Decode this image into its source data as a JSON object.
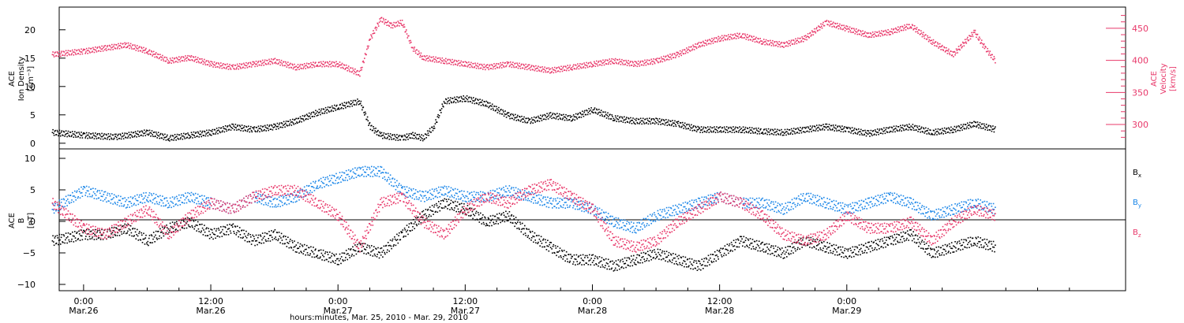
{
  "colors": {
    "black": "#000000",
    "pink": "#e8386a",
    "blue": "#1a86e8",
    "pink_axis": "#e8386a"
  },
  "chart_data": [
    {
      "type": "scatter",
      "panel": "top",
      "ylabel_left": [
        "ACE",
        "Ion Density",
        "[cm⁻³]"
      ],
      "ylabel_right": [
        "ACE",
        "Velocity",
        "[km/s]"
      ],
      "ylim_left": [
        -1,
        24
      ],
      "yticks_left": [
        "0",
        "5",
        "10",
        "15",
        "20"
      ],
      "ylim_right": [
        262,
        483
      ],
      "yticks_right": [
        "300",
        "350",
        "400",
        "450"
      ],
      "series": [
        {
          "color": "black",
          "axis": "left",
          "x": [
            -3,
            0,
            3,
            6,
            8,
            10,
            12,
            14,
            16,
            18,
            20,
            22,
            24,
            26,
            27,
            28,
            30,
            31,
            32,
            33,
            34,
            36,
            38,
            40,
            42,
            44,
            46,
            48,
            50,
            52,
            54,
            56,
            58,
            60,
            62,
            64,
            66,
            68,
            70,
            72,
            74,
            76,
            78,
            80,
            82,
            84,
            86
          ],
          "y": [
            2,
            1.5,
            1.2,
            2,
            1,
            1.5,
            2,
            3,
            2.5,
            3,
            4,
            5.5,
            6.5,
            7.5,
            3,
            1.5,
            1,
            1.5,
            1,
            3,
            7.5,
            8,
            7,
            5,
            4,
            5,
            4.5,
            6,
            4.5,
            4,
            4,
            3.5,
            2.5,
            2.5,
            2.5,
            2.2,
            2,
            2.5,
            3,
            2.5,
            1.8,
            2.5,
            3,
            2,
            2.5,
            3.5,
            2.5
          ]
        },
        {
          "color": "pink",
          "axis": "right",
          "x": [
            -3,
            0,
            2,
            4,
            6,
            8,
            10,
            12,
            14,
            16,
            18,
            20,
            22,
            24,
            26,
            27,
            28,
            29,
            30,
            31,
            32,
            34,
            36,
            38,
            40,
            42,
            44,
            46,
            48,
            50,
            52,
            54,
            56,
            58,
            60,
            62,
            64,
            66,
            68,
            70,
            72,
            74,
            76,
            78,
            80,
            82,
            84,
            85,
            86
          ],
          "y": [
            410,
            415,
            420,
            425,
            415,
            400,
            405,
            395,
            390,
            395,
            400,
            390,
            395,
            395,
            380,
            435,
            465,
            455,
            460,
            420,
            405,
            400,
            395,
            390,
            395,
            390,
            385,
            390,
            395,
            400,
            395,
            400,
            410,
            425,
            435,
            440,
            430,
            425,
            435,
            460,
            450,
            440,
            445,
            455,
            430,
            410,
            445,
            420,
            400
          ]
        }
      ]
    },
    {
      "type": "scatter",
      "panel": "bottom",
      "ylabel_left": [
        "ACE",
        "B",
        "[nT]"
      ],
      "ylim_left": [
        -11,
        11.5
      ],
      "yticks_left": [
        "10",
        "5",
        "0",
        "−5",
        "−10"
      ],
      "xlim": [
        -2.3,
        98.3
      ],
      "xticks": [
        {
          "x": 0,
          "label_time": "0:00",
          "label_day": "Mar.26"
        },
        {
          "x": 12,
          "label_time": "12:00",
          "label_day": "Mar.26"
        },
        {
          "x": 24,
          "label_time": "0:00",
          "label_day": "Mar.27"
        },
        {
          "x": 36,
          "label_time": "12:00",
          "label_day": "Mar.27"
        },
        {
          "x": 48,
          "label_time": "0:00",
          "label_day": "Mar.28"
        },
        {
          "x": 60,
          "label_time": "12:00",
          "label_day": "Mar.28"
        },
        {
          "x": 72,
          "label_time": "0:00",
          "label_day": "Mar.29"
        }
      ],
      "xlabel": "hours:minutes, Mar. 25, 2010 - Mar. 29, 2010",
      "series": [
        {
          "name": "Bx",
          "color": "black",
          "x": [
            -3,
            0,
            2,
            4,
            6,
            8,
            10,
            12,
            14,
            16,
            18,
            20,
            22,
            24,
            26,
            28,
            30,
            32,
            34,
            36,
            38,
            40,
            42,
            44,
            46,
            48,
            50,
            52,
            54,
            56,
            58,
            60,
            62,
            64,
            66,
            68,
            70,
            72,
            74,
            76,
            78,
            80,
            82,
            84,
            86
          ],
          "y": [
            -3,
            -2,
            -2,
            -1,
            -3,
            -1,
            0,
            -2,
            -1,
            -3,
            -2,
            -4,
            -5,
            -6,
            -4,
            -5,
            -2,
            1,
            3,
            2,
            0,
            1,
            -2,
            -4,
            -6,
            -6,
            -7,
            -6,
            -5,
            -6,
            -7,
            -5,
            -3,
            -4,
            -5,
            -3,
            -4,
            -5,
            -4,
            -3,
            -2,
            -5,
            -4,
            -3,
            -4
          ]
        },
        {
          "name": "By",
          "color": "blue",
          "x": [
            -3,
            0,
            2,
            4,
            6,
            8,
            10,
            12,
            14,
            16,
            18,
            20,
            22,
            24,
            26,
            28,
            30,
            32,
            34,
            36,
            38,
            40,
            42,
            44,
            46,
            48,
            50,
            52,
            54,
            56,
            58,
            60,
            62,
            64,
            66,
            68,
            70,
            72,
            74,
            76,
            78,
            80,
            82,
            84,
            86
          ],
          "y": [
            2,
            5,
            4,
            3,
            4,
            3,
            4,
            3,
            2,
            4,
            3,
            4,
            6,
            7,
            8,
            8,
            5,
            4,
            5,
            4,
            4,
            5,
            4,
            3,
            3,
            2,
            0,
            -1,
            1,
            2,
            3,
            4,
            3,
            3,
            2,
            4,
            3,
            2,
            3,
            4,
            3,
            1,
            2,
            3,
            2
          ]
        },
        {
          "name": "Bz",
          "color": "pink",
          "x": [
            -3,
            0,
            2,
            4,
            6,
            8,
            10,
            12,
            14,
            16,
            18,
            20,
            22,
            24,
            26,
            28,
            30,
            32,
            34,
            36,
            38,
            40,
            42,
            44,
            46,
            48,
            50,
            52,
            54,
            56,
            58,
            60,
            62,
            64,
            66,
            68,
            70,
            72,
            74,
            76,
            78,
            80,
            82,
            84,
            86
          ],
          "y": [
            3,
            -1,
            -2,
            0,
            2,
            -2,
            1,
            3,
            2,
            4,
            5,
            5,
            3,
            1,
            -4,
            3,
            4,
            0,
            -2,
            2,
            4,
            3,
            5,
            6,
            4,
            2,
            -3,
            -4,
            -3,
            0,
            2,
            4,
            3,
            1,
            -2,
            -3,
            -2,
            1,
            -1,
            -1,
            0,
            -3,
            0,
            2,
            1
          ]
        }
      ],
      "legend": [
        {
          "text": "B",
          "sub": "x",
          "color": "black"
        },
        {
          "text": "B",
          "sub": "y",
          "color": "blue"
        },
        {
          "text": "B",
          "sub": "z",
          "color": "pink"
        }
      ]
    }
  ]
}
